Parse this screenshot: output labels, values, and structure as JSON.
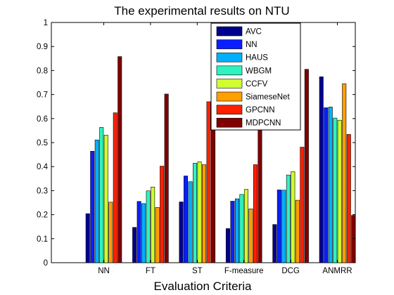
{
  "chart_data": {
    "type": "bar",
    "title": "The experimental results on NTU",
    "xlabel": "Evaluation Criteria",
    "ylabel": "",
    "ylim": [
      0,
      1
    ],
    "yticks": [
      "0",
      "0.1",
      "0.2",
      "0.3",
      "0.4",
      "0.5",
      "0.6",
      "0.7",
      "0.8",
      "0.9",
      "1"
    ],
    "categories": [
      "NN",
      "FT",
      "ST",
      "F-measure",
      "DCG",
      "ANMRR"
    ],
    "legend_position": "top-center",
    "grid": false,
    "series": [
      {
        "name": "AVC",
        "color": "#00008f",
        "values": [
          0.204,
          0.147,
          0.253,
          0.142,
          0.159,
          0.774
        ]
      },
      {
        "name": "NN",
        "color": "#0a1fff",
        "values": [
          0.464,
          0.255,
          0.361,
          0.256,
          0.303,
          0.645
        ]
      },
      {
        "name": "HAUS",
        "color": "#00b0ff",
        "values": [
          0.511,
          0.246,
          0.337,
          0.266,
          0.302,
          0.648
        ]
      },
      {
        "name": "WBGM",
        "color": "#2ff2c0",
        "values": [
          0.563,
          0.299,
          0.414,
          0.284,
          0.365,
          0.602
        ]
      },
      {
        "name": "CCFV",
        "color": "#cfff2f",
        "values": [
          0.531,
          0.315,
          0.42,
          0.305,
          0.379,
          0.593
        ]
      },
      {
        "name": "SiameseNet",
        "color": "#ff9f00",
        "values": [
          0.252,
          0.23,
          0.408,
          0.224,
          0.26,
          0.745
        ]
      },
      {
        "name": "GPCNN",
        "color": "#ff2000",
        "values": [
          0.624,
          0.402,
          0.67,
          0.408,
          0.481,
          0.534
        ]
      },
      {
        "name": "MDPCNN",
        "color": "#7f0000",
        "values": [
          0.858,
          0.702,
          0.79,
          0.597,
          0.805,
          0.197
        ]
      }
    ]
  }
}
